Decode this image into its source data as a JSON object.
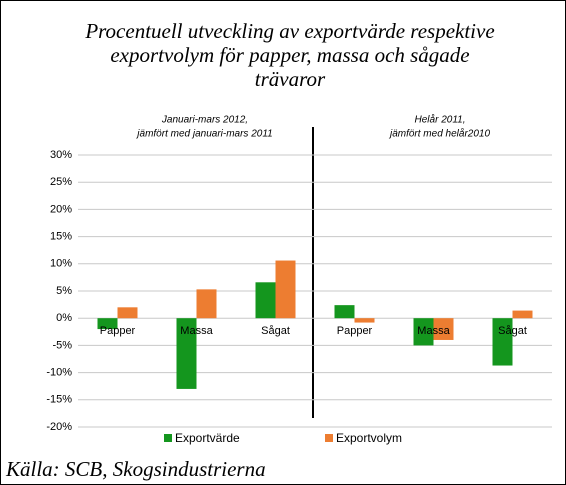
{
  "chart_data": {
    "type": "bar",
    "title": [
      "Procentuell utveckling av exportvärde respektive",
      "exportvolym för papper, massa och sågade",
      "trävaror"
    ],
    "annotations": [
      {
        "lines": [
          "Januari-mars 2012,",
          "jämfört med januari-mars 2011"
        ]
      },
      {
        "lines": [
          "Helår 2011,",
          "jämfört med helår2010"
        ]
      }
    ],
    "categories": [
      "Papper",
      "Massa",
      "Sågat",
      "Papper",
      "Massa",
      "Sågat"
    ],
    "series": [
      {
        "name": "Exportvärde",
        "color": "#14961e",
        "values": [
          -2,
          -13,
          6.6,
          2.4,
          -5,
          -8.7
        ]
      },
      {
        "name": "Exportvolym",
        "color": "#ed7d31",
        "values": [
          2,
          5.3,
          10.6,
          -0.8,
          -4,
          1.4
        ]
      }
    ],
    "ylim": [
      -20,
      30
    ],
    "yticks": [
      {
        "value": -20,
        "label": "-20%"
      },
      {
        "value": -15,
        "label": "-15%"
      },
      {
        "value": -10,
        "label": "-10%"
      },
      {
        "value": -5,
        "label": "-5%"
      },
      {
        "value": 0,
        "label": "0%"
      },
      {
        "value": 5,
        "label": "5%"
      },
      {
        "value": 10,
        "label": "10%"
      },
      {
        "value": 15,
        "label": "15%"
      },
      {
        "value": 20,
        "label": "20%"
      },
      {
        "value": 25,
        "label": "25%"
      },
      {
        "value": 30,
        "label": "30%"
      }
    ],
    "grid": true,
    "legend": "bottom",
    "source": "Källa: SCB, Skogsindustrierna"
  }
}
